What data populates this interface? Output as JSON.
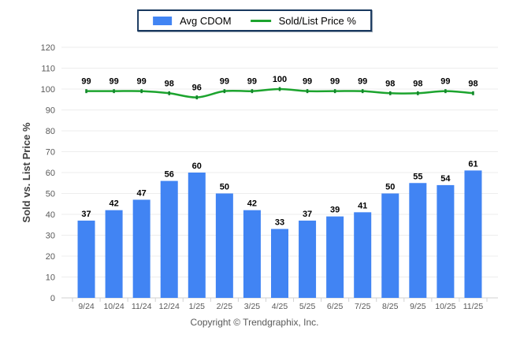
{
  "legend": {
    "items": [
      {
        "label": "Avg CDOM",
        "type": "bar",
        "color": "#4184F3"
      },
      {
        "label": "Sold/List Price %",
        "type": "line",
        "color": "#1CA42E"
      }
    ],
    "border_color": "#17375E"
  },
  "chart_data": {
    "type": "bar",
    "categories": [
      "9/24",
      "10/24",
      "11/24",
      "12/24",
      "1/25",
      "2/25",
      "3/25",
      "4/25",
      "5/25",
      "6/25",
      "7/25",
      "8/25",
      "9/25",
      "10/25",
      "11/25"
    ],
    "series": [
      {
        "name": "Avg CDOM",
        "type": "bar",
        "color": "#4184F3",
        "values": [
          37,
          42,
          47,
          56,
          60,
          50,
          42,
          33,
          37,
          39,
          41,
          50,
          55,
          54,
          61
        ]
      },
      {
        "name": "Sold/List Price %",
        "type": "line",
        "color": "#1CA42E",
        "marker_color": "#12862A",
        "values": [
          99,
          99,
          99,
          98,
          96,
          99,
          99,
          100,
          99,
          99,
          99,
          98,
          98,
          99,
          98
        ]
      }
    ],
    "title": "",
    "xlabel": "",
    "ylabel": "Sold vs. List Price %",
    "ylim": [
      0,
      120
    ],
    "ytick_step": 10,
    "grid": true,
    "legend_position": "top-center"
  },
  "footer": {
    "copyright": "Copyright © Trendgraphix, Inc."
  },
  "colors": {
    "background": "#FFFFFF",
    "grid": "#EDEDED",
    "axis": "#D2D2D2",
    "tick_label": "#595959",
    "axis_title": "#404040",
    "value_label": "#000000"
  }
}
